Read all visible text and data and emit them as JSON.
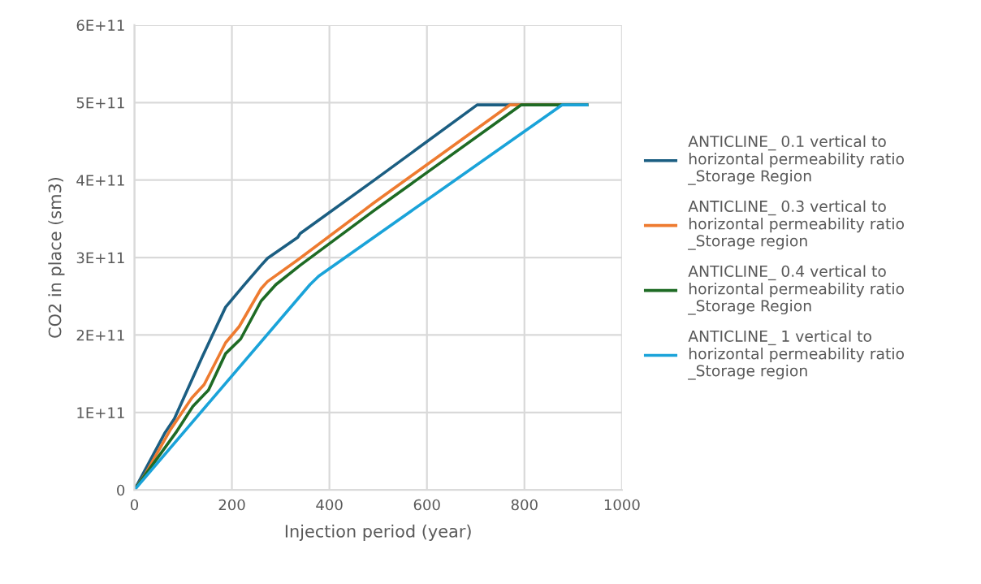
{
  "chart_data": {
    "type": "line",
    "xlabel": "Injection period (year)",
    "ylabel": "CO2 in place (sm3)",
    "xlim": [
      0,
      1000
    ],
    "xticks": [
      0,
      200,
      400,
      600,
      800,
      1000
    ],
    "ylim": [
      0,
      600000000000.0
    ],
    "yticks": [
      0,
      {
        "value": 100000000000.0,
        "label": "1E+11"
      },
      {
        "value": 200000000000.0,
        "label": "2E+11"
      },
      {
        "value": 300000000000.0,
        "label": "3E+11"
      },
      {
        "value": 400000000000.0,
        "label": "4E+11"
      },
      {
        "value": 500000000000.0,
        "label": "5E+11"
      },
      {
        "value": 600000000000.0,
        "label": "6E+11"
      }
    ],
    "grid": true,
    "legend": "right",
    "marker": "none",
    "line_style": "solid",
    "series": [
      {
        "name": "ANTICLINE_ 0.1 vertical to\nhorizontal permeability ratio\n_Storage Region",
        "color": "#1b5e82",
        "x": [
          0,
          62,
          82,
          140,
          187,
          223,
          260,
          273,
          335,
          340,
          490,
          703,
          928
        ],
        "values": [
          0,
          73000000000.0,
          92000000000.0,
          173000000000.0,
          236000000000.0,
          263000000000.0,
          290000000000.0,
          299000000000.0,
          326000000000.0,
          331000000000.0,
          399000000000.0,
          497000000000.0,
          497000000000.0
        ]
      },
      {
        "name": "ANTICLINE_ 0.3 vertical to\nhorizontal permeability ratio\n_Storage region",
        "color": "#ee7b30",
        "x": [
          0,
          23,
          73,
          118,
          143,
          187,
          215,
          260,
          273,
          335,
          490,
          770,
          928
        ],
        "values": [
          0,
          21000000000.0,
          77000000000.0,
          119000000000.0,
          136000000000.0,
          190000000000.0,
          211000000000.0,
          260000000000.0,
          269000000000.0,
          297000000000.0,
          370000000000.0,
          497000000000.0,
          497000000000.0
        ]
      },
      {
        "name": "ANTICLINE_ 0.4 vertical to\nhorizontal permeability ratio\n_Storage Region",
        "color": "#1e6b24",
        "x": [
          0,
          85,
          120,
          152,
          187,
          218,
          260,
          290,
          340,
          490,
          793,
          928
        ],
        "values": [
          0,
          74000000000.0,
          108000000000.0,
          129000000000.0,
          176000000000.0,
          195000000000.0,
          244000000000.0,
          265000000000.0,
          290000000000.0,
          360000000000.0,
          497000000000.0,
          497000000000.0
        ]
      },
      {
        "name": "ANTICLINE_ 1 vertical to\nhorizontal permeability ratio\n_Storage region",
        "color": "#1aa3d9",
        "x": [
          0,
          360,
          378,
          877,
          928
        ],
        "values": [
          0,
          265000000000.0,
          276000000000.0,
          497000000000.0,
          497000000000.0
        ]
      }
    ]
  }
}
